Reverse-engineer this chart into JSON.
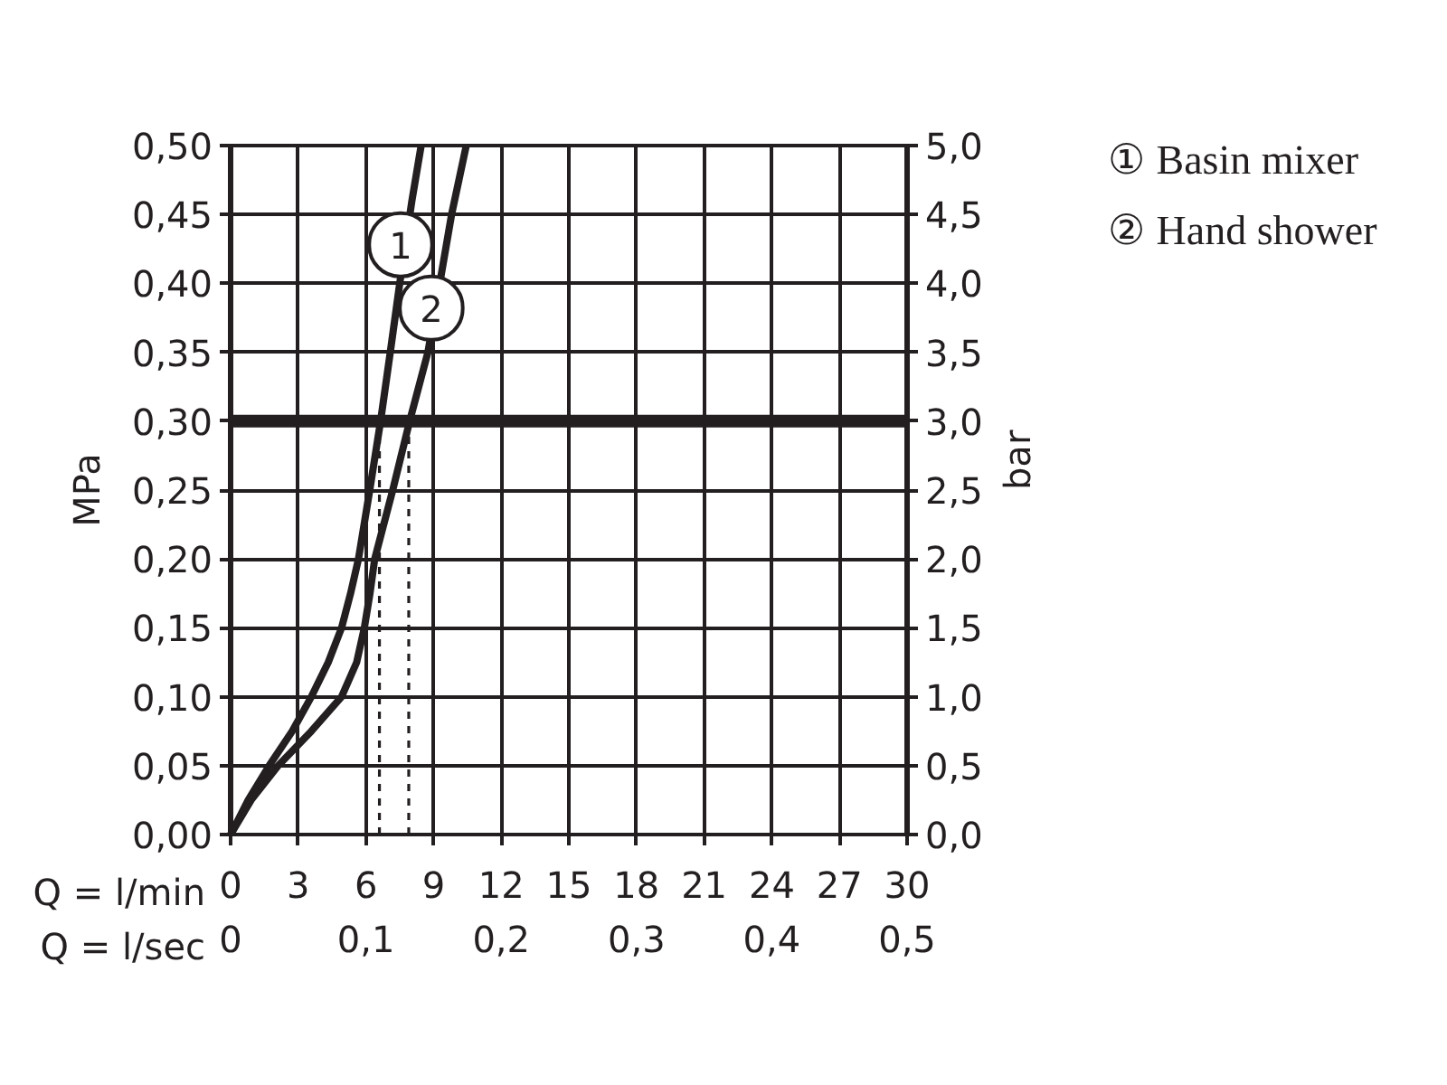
{
  "chart_data": {
    "type": "line",
    "xlabel": "Q = l/min",
    "ylabel": "MPa",
    "y2label": "bar",
    "x2label": "Q = l/sec",
    "xlim": [
      0,
      30
    ],
    "xticks": [
      0,
      3,
      6,
      9,
      12,
      15,
      18,
      21,
      24,
      27,
      30
    ],
    "ylim": [
      0,
      0.5
    ],
    "yticks": [
      {
        "value": 0,
        "label": "0,00"
      },
      {
        "value": 0.05,
        "label": "0,05"
      },
      {
        "value": 0.1,
        "label": "0,10"
      },
      {
        "value": 0.15,
        "label": "0,15"
      },
      {
        "value": 0.2,
        "label": "0,20"
      },
      {
        "value": 0.25,
        "label": "0,25"
      },
      {
        "value": 0.3,
        "label": "0,30"
      },
      {
        "value": 0.35,
        "label": "0,35"
      },
      {
        "value": 0.4,
        "label": "0,40"
      },
      {
        "value": 0.45,
        "label": "0,45"
      },
      {
        "value": 0.5,
        "label": "0,50"
      }
    ],
    "y2lim": [
      0,
      5
    ],
    "y2ticks": [
      {
        "value": 0,
        "label": "0,0"
      },
      {
        "value": 0.5,
        "label": "0,5"
      },
      {
        "value": 1,
        "label": "1,0"
      },
      {
        "value": 1.5,
        "label": "1,5"
      },
      {
        "value": 2,
        "label": "2,0"
      },
      {
        "value": 2.5,
        "label": "2,5"
      },
      {
        "value": 3,
        "label": "3,0"
      },
      {
        "value": 3.5,
        "label": "3,5"
      },
      {
        "value": 4,
        "label": "4,0"
      },
      {
        "value": 4.5,
        "label": "4,5"
      },
      {
        "value": 5,
        "label": "5,0"
      }
    ],
    "x2lim": [
      0,
      0.5
    ],
    "x2ticks": [
      0,
      {
        "value": 0.1,
        "label": "0,1"
      },
      {
        "value": 0.2,
        "label": "0,2"
      },
      {
        "value": 0.3,
        "label": "0,3"
      },
      {
        "value": 0.4,
        "label": "0,4"
      },
      {
        "value": 0.5,
        "label": "0,5"
      }
    ],
    "series": [
      {
        "name": "① Basin mixer",
        "color": "#231f20",
        "x": [
          0,
          0.78,
          1.71,
          2.73,
          3.58,
          4.33,
          4.92,
          5.32,
          5.67,
          6.17,
          6.65,
          7.08,
          7.5,
          8.04,
          8.45
        ],
        "values": [
          0,
          0.025,
          0.05,
          0.075,
          0.1,
          0.125,
          0.15,
          0.175,
          0.2,
          0.25,
          0.3,
          0.35,
          0.4,
          0.46,
          0.5
        ]
      },
      {
        "name": "② Hand shower",
        "color": "#231f20",
        "x": [
          0,
          0.91,
          2.11,
          3.58,
          4.92,
          5.59,
          5.93,
          6.18,
          6.39,
          7.19,
          7.94,
          8.75,
          9.8,
          10.45
        ],
        "values": [
          0,
          0.025,
          0.05,
          0.075,
          0.1,
          0.125,
          0.15,
          0.175,
          0.2,
          0.25,
          0.3,
          0.35,
          0.45,
          0.5
        ]
      }
    ],
    "annotations": [
      {
        "text": "1",
        "x": 7.54,
        "y": 0.428
      },
      {
        "text": "2",
        "x": 8.9,
        "y": 0.382
      }
    ],
    "ref_lines": [
      {
        "axis": "y",
        "value": 0.3,
        "color": "#231f20"
      },
      {
        "axis": "x",
        "value": 6.6,
        "line_style": "dashed",
        "color": "#231f20"
      },
      {
        "axis": "x",
        "value": 7.9,
        "line_style": "dashed",
        "color": "#231f20"
      }
    ],
    "grid": true
  }
}
